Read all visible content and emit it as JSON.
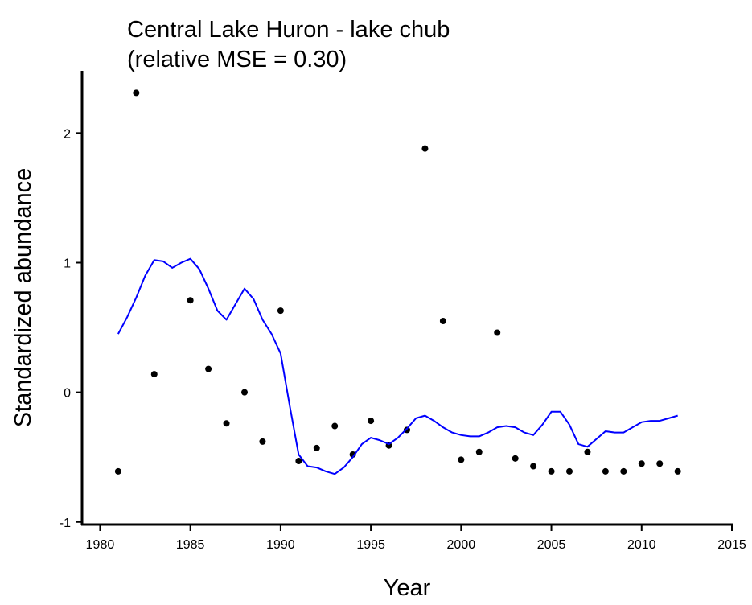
{
  "chart_data": {
    "type": "scatter",
    "title": "Central Lake Huron - lake chub",
    "subtitle": "(relative MSE = 0.30)",
    "x_label": "Year",
    "y_label": "Standardized abundance",
    "xlim": [
      1979,
      2015
    ],
    "ylim": [
      -1.02,
      2.48
    ],
    "xticks": [
      1980,
      1985,
      1990,
      1995,
      2000,
      2005,
      2010,
      2015
    ],
    "yticks": [
      -1,
      0,
      1,
      2
    ],
    "series": [
      {
        "type": "scatter",
        "color": "#000000",
        "x": [
          1981,
          1982,
          1983,
          1985,
          1986,
          1987,
          1988,
          1989,
          1990,
          1991,
          1992,
          1993,
          1994,
          1995,
          1996,
          1997,
          1998,
          1999,
          2000,
          2001,
          2002,
          2003,
          2004,
          2005,
          2006,
          2007,
          2008,
          2009,
          2010,
          2011,
          2012
        ],
        "values": [
          -0.61,
          2.31,
          0.14,
          0.71,
          0.18,
          -0.24,
          0.0,
          -0.38,
          0.63,
          -0.53,
          -0.43,
          -0.26,
          -0.48,
          -0.22,
          -0.41,
          -0.29,
          1.88,
          0.55,
          -0.52,
          -0.46,
          0.46,
          -0.51,
          -0.57,
          -0.61,
          -0.61,
          -0.46,
          -0.61,
          -0.61,
          -0.55,
          -0.55,
          -0.61
        ]
      },
      {
        "type": "line",
        "color": "#0000ff",
        "x": [
          1981,
          1981.5,
          1982,
          1982.5,
          1983,
          1983.5,
          1984,
          1984.5,
          1985,
          1985.5,
          1986,
          1986.5,
          1987,
          1987.5,
          1988,
          1988.5,
          1989,
          1989.5,
          1990,
          1990.5,
          1991,
          1991.5,
          1992,
          1992.5,
          1993,
          1993.5,
          1994,
          1994.5,
          1995,
          1995.5,
          1996,
          1996.5,
          1997,
          1997.5,
          1998,
          1998.5,
          1999,
          1999.5,
          2000,
          2000.5,
          2001,
          2001.5,
          2002,
          2002.5,
          2003,
          2003.5,
          2004,
          2004.5,
          2005,
          2005.5,
          2006,
          2006.5,
          2007,
          2007.5,
          2008,
          2008.5,
          2009,
          2009.5,
          2010,
          2010.5,
          2011,
          2011.5,
          2012
        ],
        "values": [
          0.45,
          0.58,
          0.73,
          0.9,
          1.02,
          1.01,
          0.96,
          1.0,
          1.03,
          0.95,
          0.8,
          0.63,
          0.56,
          0.68,
          0.8,
          0.72,
          0.56,
          0.45,
          0.3,
          -0.1,
          -0.48,
          -0.57,
          -0.58,
          -0.61,
          -0.63,
          -0.58,
          -0.5,
          -0.4,
          -0.35,
          -0.37,
          -0.4,
          -0.35,
          -0.28,
          -0.2,
          -0.18,
          -0.22,
          -0.27,
          -0.31,
          -0.33,
          -0.34,
          -0.34,
          -0.31,
          -0.27,
          -0.26,
          -0.27,
          -0.31,
          -0.33,
          -0.25,
          -0.15,
          -0.15,
          -0.25,
          -0.4,
          -0.42,
          -0.36,
          -0.3,
          -0.31,
          -0.31,
          -0.27,
          -0.23,
          -0.22,
          -0.22,
          -0.2,
          -0.18
        ]
      }
    ]
  }
}
